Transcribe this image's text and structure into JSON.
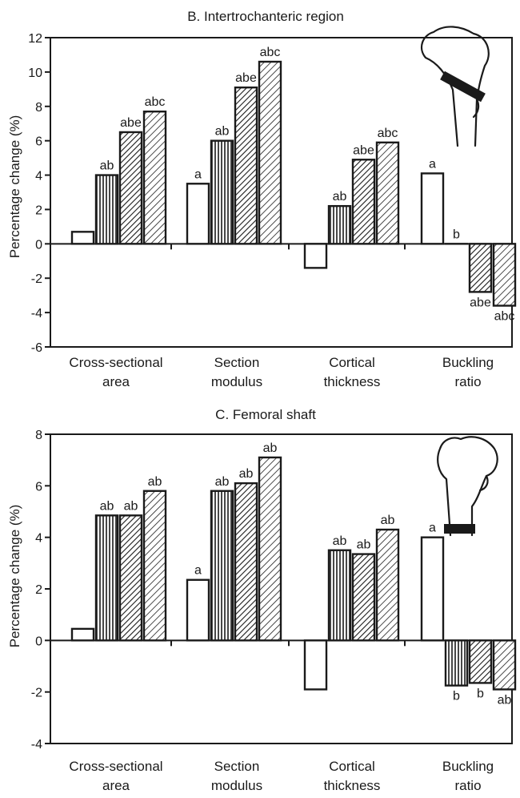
{
  "chart_data": [
    {
      "type": "bar",
      "title": "B. Intertrochanteric region",
      "ylabel": "Percentage change (%)",
      "xlabel": "",
      "ylim": [
        -6,
        12
      ],
      "yticks": [
        "-6",
        "-4",
        "-2",
        "0",
        "2",
        "4",
        "6",
        "8",
        "10",
        "12"
      ],
      "grid": false,
      "legend": "none",
      "icon": "femur-neck-region-icon",
      "categories": [
        [
          "Cross-sectional",
          "area"
        ],
        [
          "Section",
          "modulus"
        ],
        [
          "Cortical",
          "thickness"
        ],
        [
          "Buckling",
          "ratio"
        ]
      ],
      "series": [
        {
          "pattern": "white",
          "values": [
            0.7,
            3.5,
            -1.4,
            4.1
          ],
          "labels": [
            "",
            "a",
            "",
            "a"
          ]
        },
        {
          "pattern": "vertical",
          "values": [
            4.0,
            6.0,
            2.2,
            0.0
          ],
          "labels": [
            "ab",
            "ab",
            "ab",
            "b"
          ]
        },
        {
          "pattern": "dense-diagonal",
          "values": [
            6.5,
            9.1,
            4.9,
            -2.8
          ],
          "labels": [
            "abe",
            "abe",
            "abe",
            "abe"
          ]
        },
        {
          "pattern": "diagonal",
          "values": [
            7.7,
            10.6,
            5.9,
            -3.6
          ],
          "labels": [
            "abc",
            "abc",
            "abc",
            "abc"
          ]
        }
      ]
    },
    {
      "type": "bar",
      "title": "C. Femoral shaft",
      "ylabel": "Percentage change (%)",
      "xlabel": "",
      "ylim": [
        -4,
        8
      ],
      "yticks": [
        "-4",
        "-2",
        "0",
        "2",
        "4",
        "6",
        "8"
      ],
      "grid": false,
      "legend": "none",
      "icon": "femur-shaft-region-icon",
      "categories": [
        [
          "Cross-sectional",
          "area"
        ],
        [
          "Section",
          "modulus"
        ],
        [
          "Cortical",
          "thickness"
        ],
        [
          "Buckling",
          "ratio"
        ]
      ],
      "series": [
        {
          "pattern": "white",
          "values": [
            0.45,
            2.35,
            -1.9,
            4.0
          ],
          "labels": [
            "",
            "a",
            "",
            "a"
          ]
        },
        {
          "pattern": "vertical",
          "values": [
            4.85,
            5.8,
            3.5,
            -1.75
          ],
          "labels": [
            "ab",
            "ab",
            "ab",
            "b"
          ]
        },
        {
          "pattern": "dense-diagonal",
          "values": [
            4.85,
            6.1,
            3.35,
            -1.65
          ],
          "labels": [
            "ab",
            "ab",
            "ab",
            "b"
          ]
        },
        {
          "pattern": "diagonal",
          "values": [
            5.8,
            7.1,
            4.3,
            -1.9
          ],
          "labels": [
            "ab",
            "ab",
            "ab",
            "ab"
          ]
        }
      ]
    }
  ],
  "colors": {
    "ink": "#1a1a1a",
    "background": "#ffffff"
  }
}
